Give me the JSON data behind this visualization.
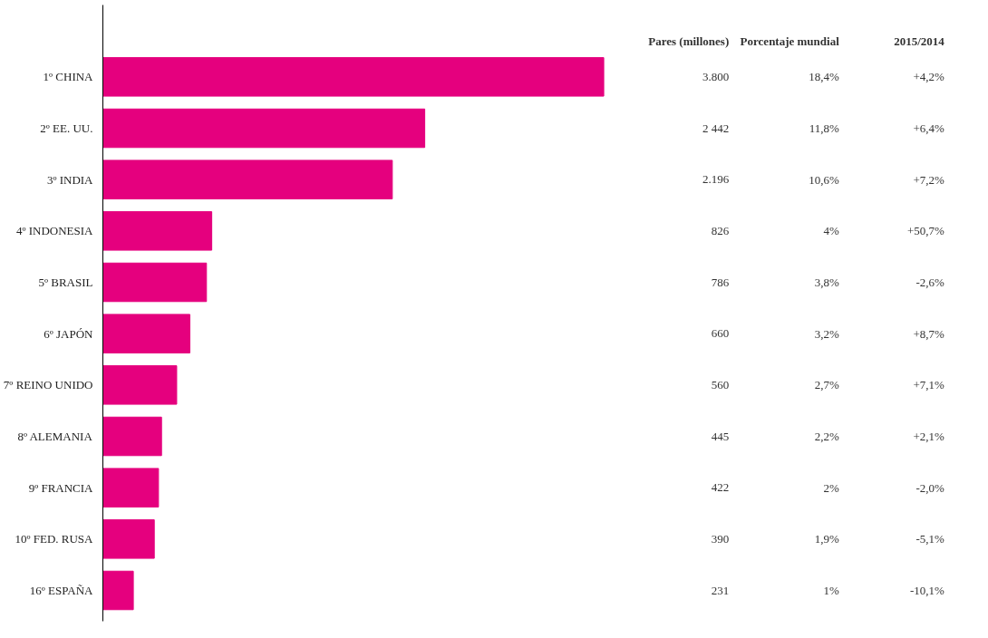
{
  "chart_data": {
    "type": "bar",
    "orientation": "horizontal",
    "categories": [
      "1º CHINA",
      "2º EE. UU.",
      "3º INDIA",
      "4º INDONESIA",
      "5º BRASIL",
      "6º JAPÓN",
      "7º REINO UNIDO",
      "8º ALEMANIA",
      "9º FRANCIA",
      "10º FED. RUSA",
      "16º ESPAÑA"
    ],
    "values": [
      3800,
      2442,
      2196,
      826,
      786,
      660,
      560,
      445,
      422,
      390,
      231
    ],
    "color": "#e5007e",
    "value_labels": [
      "3.800",
      "2 442",
      "2.196",
      "826",
      "786",
      "660",
      "560",
      "445",
      "422",
      "390",
      "231"
    ],
    "xlabel": "Pares (millones)",
    "annotations": [
      "Porcentaje mundial",
      "2015/2014",
      "18,4%",
      "+4,2%",
      "11,8%",
      "+6,4%",
      "10,6%",
      "+7,2%",
      "4%",
      "+50,7%",
      "3,8%",
      "-2,6%",
      "3,2%",
      "+8,7%",
      "2,7%",
      "+7,1%",
      "2,2%",
      "+2,1%",
      "2%",
      "-2,0%",
      "1,9%",
      "-5,1%",
      "1%",
      "-10,1%"
    ],
    "tick_labels": "y",
    "grid": false
  }
}
